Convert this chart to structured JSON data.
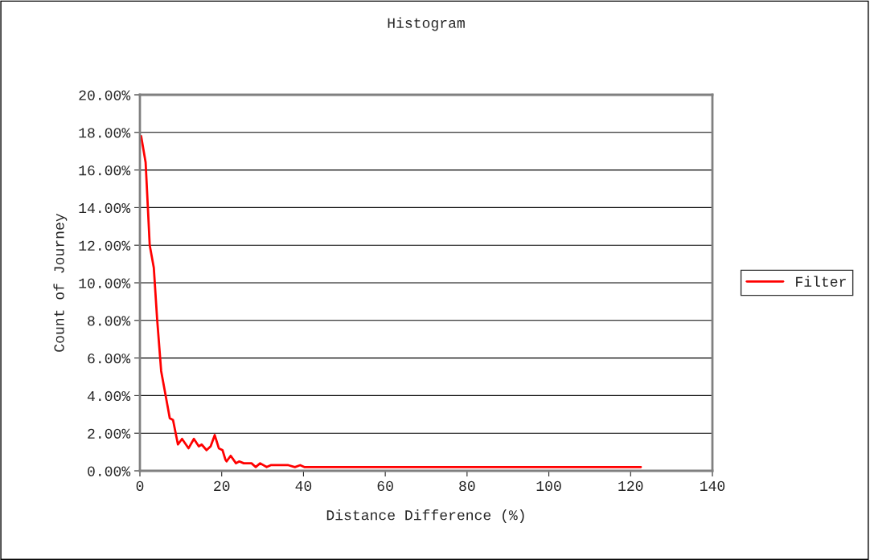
{
  "chart_data": {
    "type": "line",
    "title": "Histogram",
    "xlabel": "Distance Difference (%)",
    "ylabel": "Count of Journey",
    "series": [
      {
        "name": "Filter",
        "color": "#ff0000",
        "x": [
          0.3,
          1.4,
          2.4,
          3.4,
          4.2,
          5.2,
          6.3,
          7.3,
          8.1,
          9.3,
          10.3,
          11.9,
          13.2,
          14.4,
          15.1,
          16.3,
          17.3,
          18.3,
          19.3,
          20.2,
          20.9,
          21.2,
          22.2,
          23.5,
          24.3,
          25.4,
          27.3,
          28.3,
          29.4,
          31.0,
          32.0,
          36.3,
          37.9,
          39.2,
          40.2,
          122.5
        ],
        "values": [
          17.8,
          16.4,
          12.0,
          10.8,
          8.1,
          5.3,
          4.0,
          2.8,
          2.7,
          1.4,
          1.7,
          1.2,
          1.7,
          1.3,
          1.4,
          1.1,
          1.3,
          1.9,
          1.2,
          1.1,
          0.6,
          0.5,
          0.8,
          0.4,
          0.5,
          0.4,
          0.4,
          0.2,
          0.4,
          0.2,
          0.3,
          0.3,
          0.2,
          0.3,
          0.2,
          0.2
        ]
      }
    ],
    "xlim": [
      0,
      140
    ],
    "xticks": [
      0,
      20,
      40,
      60,
      80,
      100,
      120,
      140
    ],
    "ylim": [
      0,
      20
    ],
    "yticks": [
      {
        "value": 0,
        "label": "0.00%"
      },
      {
        "value": 2,
        "label": "2.00%"
      },
      {
        "value": 4,
        "label": "4.00%"
      },
      {
        "value": 6,
        "label": "6.00%"
      },
      {
        "value": 8,
        "label": "8.00%"
      },
      {
        "value": 10,
        "label": "10.00%"
      },
      {
        "value": 12,
        "label": "12.00%"
      },
      {
        "value": 14,
        "label": "14.00%"
      },
      {
        "value": 16,
        "label": "16.00%"
      },
      {
        "value": 18,
        "label": "18.00%"
      },
      {
        "value": 20,
        "label": "20.00%"
      }
    ],
    "grid": "y",
    "legend": "right",
    "marker": "none",
    "line_style": "solid"
  }
}
